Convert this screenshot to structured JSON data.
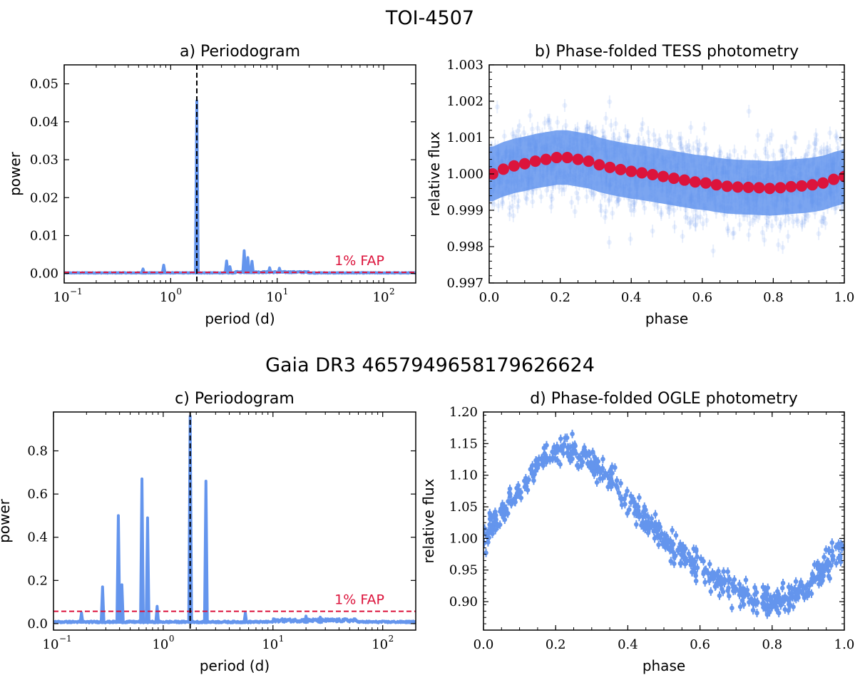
{
  "figure": {
    "top_title": "TOI-4507",
    "bottom_title": "Gaia DR3 4657949658179626624"
  },
  "colors": {
    "data": "#6495ed",
    "accent": "#dc143c",
    "period_line": "#000000"
  },
  "chart_data": [
    {
      "id": "a",
      "type": "line",
      "title": "a) Periodogram",
      "xlabel": "period (d)",
      "ylabel": "power",
      "xscale": "log",
      "xlim": [
        0.1,
        200
      ],
      "ylim": [
        -0.0025,
        0.055
      ],
      "yticks": [
        "0.00",
        "0.01",
        "0.02",
        "0.03",
        "0.04",
        "0.05"
      ],
      "ytick_values": [
        0,
        0.01,
        0.02,
        0.03,
        0.04,
        0.05
      ],
      "xticks": [
        {
          "base": "10",
          "exp": "−1",
          "v": 0.1
        },
        {
          "base": "10",
          "exp": "0",
          "v": 1
        },
        {
          "base": "10",
          "exp": "1",
          "v": 10
        },
        {
          "base": "10",
          "exp": "2",
          "v": 100
        }
      ],
      "fap_label": "1% FAP",
      "fap_level": 0.0003,
      "best_period": 1.76,
      "peaks": [
        {
          "x": 0.55,
          "y": 0.0012
        },
        {
          "x": 0.86,
          "y": 0.0022
        },
        {
          "x": 1.76,
          "y": 0.0455
        },
        {
          "x": 3.35,
          "y": 0.0033
        },
        {
          "x": 3.6,
          "y": 0.0018
        },
        {
          "x": 4.9,
          "y": 0.006
        },
        {
          "x": 5.3,
          "y": 0.0042
        },
        {
          "x": 5.8,
          "y": 0.0032
        },
        {
          "x": 8.5,
          "y": 0.0015
        },
        {
          "x": 10.5,
          "y": 0.0014
        }
      ]
    },
    {
      "id": "b",
      "type": "scatter",
      "title": "b) Phase-folded TESS photometry",
      "xlabel": "phase",
      "ylabel": "relative flux",
      "xlim": [
        0,
        1
      ],
      "ylim": [
        0.997,
        1.003
      ],
      "xticks": [
        "0.0",
        "0.2",
        "0.4",
        "0.6",
        "0.8",
        "1.0"
      ],
      "xtick_values": [
        0,
        0.2,
        0.4,
        0.6,
        0.8,
        1.0
      ],
      "yticks": [
        "0.997",
        "0.998",
        "0.999",
        "1.000",
        "1.001",
        "1.002",
        "1.003"
      ],
      "ytick_values": [
        0.997,
        0.998,
        0.999,
        1.0,
        1.001,
        1.002,
        1.003
      ],
      "binned": {
        "x": [
          0.01,
          0.04,
          0.07,
          0.1,
          0.13,
          0.16,
          0.19,
          0.22,
          0.25,
          0.28,
          0.31,
          0.34,
          0.37,
          0.4,
          0.43,
          0.46,
          0.49,
          0.52,
          0.55,
          0.58,
          0.61,
          0.64,
          0.67,
          0.7,
          0.73,
          0.76,
          0.79,
          0.82,
          0.85,
          0.88,
          0.91,
          0.94,
          0.97,
          1.0
        ],
        "y": [
          1.0,
          1.00013,
          1.00022,
          1.00028,
          1.00035,
          1.0004,
          1.00045,
          1.00045,
          1.0004,
          1.00035,
          1.00025,
          1.00018,
          1.00012,
          1.00007,
          1.00003,
          0.99998,
          0.99993,
          0.99988,
          0.99983,
          0.99978,
          0.99975,
          0.9997,
          0.99966,
          0.99964,
          0.99963,
          0.99962,
          0.9996,
          0.99962,
          0.99965,
          0.99967,
          0.9997,
          0.99975,
          0.99985,
          0.99993
        ]
      }
    },
    {
      "id": "c",
      "type": "line",
      "title": "c) Periodogram",
      "xlabel": "period (d)",
      "ylabel": "power",
      "xscale": "log",
      "xlim": [
        0.1,
        200
      ],
      "ylim": [
        -0.03,
        0.98
      ],
      "yticks": [
        "0.0",
        "0.2",
        "0.4",
        "0.6",
        "0.8"
      ],
      "ytick_values": [
        0,
        0.2,
        0.4,
        0.6,
        0.8
      ],
      "xticks": [
        {
          "base": "10",
          "exp": "−1",
          "v": 0.1
        },
        {
          "base": "10",
          "exp": "0",
          "v": 1
        },
        {
          "base": "10",
          "exp": "1",
          "v": 10
        },
        {
          "base": "10",
          "exp": "2",
          "v": 100
        }
      ],
      "fap_label": "1% FAP",
      "fap_level": 0.057,
      "best_period": 1.76,
      "peaks": [
        {
          "x": 0.18,
          "y": 0.05
        },
        {
          "x": 0.28,
          "y": 0.17
        },
        {
          "x": 0.39,
          "y": 0.5
        },
        {
          "x": 0.42,
          "y": 0.18
        },
        {
          "x": 0.64,
          "y": 0.67
        },
        {
          "x": 0.72,
          "y": 0.49
        },
        {
          "x": 0.88,
          "y": 0.08
        },
        {
          "x": 1.76,
          "y": 0.96
        },
        {
          "x": 2.45,
          "y": 0.66
        },
        {
          "x": 5.6,
          "y": 0.05
        },
        {
          "x": 20,
          "y": 0.035
        },
        {
          "x": 27,
          "y": 0.03
        }
      ]
    },
    {
      "id": "d",
      "type": "scatter",
      "title": "d) Phase-folded OGLE photometry",
      "xlabel": "phase",
      "ylabel": "relative flux",
      "xlim": [
        0,
        1
      ],
      "ylim": [
        0.855,
        1.2
      ],
      "xticks": [
        "0.0",
        "0.2",
        "0.4",
        "0.6",
        "0.8",
        "1.0"
      ],
      "xtick_values": [
        0,
        0.2,
        0.4,
        0.6,
        0.8,
        1.0
      ],
      "yticks": [
        "0.90",
        "0.95",
        "1.00",
        "1.05",
        "1.10",
        "1.15",
        "1.20"
      ],
      "ytick_values": [
        0.9,
        0.95,
        1.0,
        1.05,
        1.1,
        1.15,
        1.2
      ],
      "curve": {
        "x": [
          0.0,
          0.05,
          0.1,
          0.15,
          0.2,
          0.25,
          0.3,
          0.35,
          0.4,
          0.45,
          0.5,
          0.55,
          0.6,
          0.65,
          0.7,
          0.75,
          0.8,
          0.85,
          0.9,
          0.95,
          1.0
        ],
        "y": [
          1.0,
          1.04,
          1.08,
          1.12,
          1.14,
          1.135,
          1.12,
          1.09,
          1.06,
          1.03,
          1.0,
          0.975,
          0.955,
          0.935,
          0.915,
          0.905,
          0.9,
          0.905,
          0.925,
          0.955,
          0.985
        ]
      }
    }
  ]
}
